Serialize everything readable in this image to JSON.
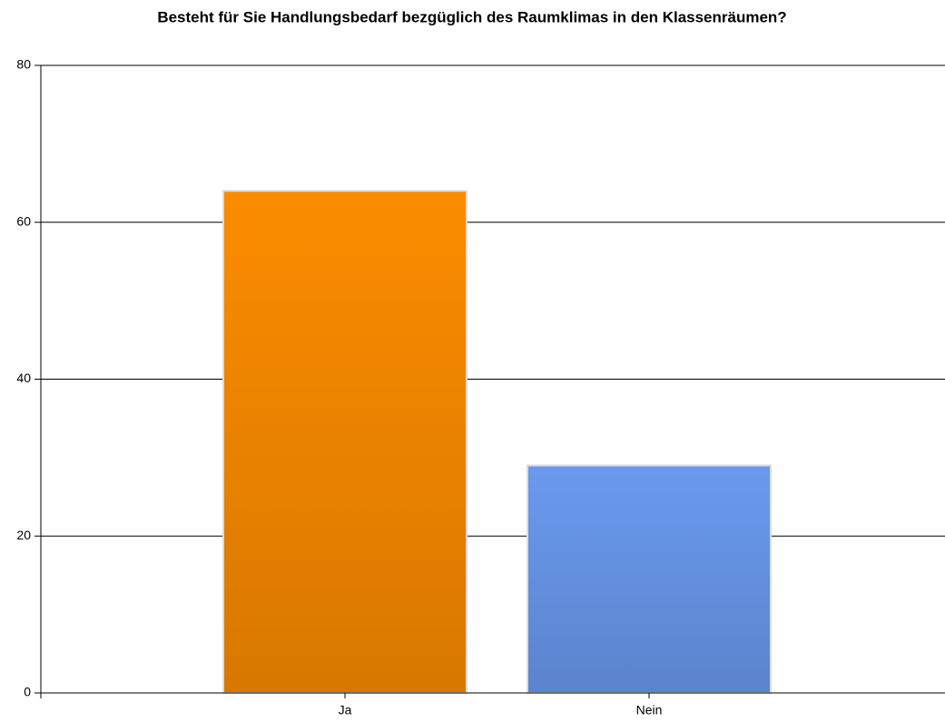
{
  "chart_data": {
    "type": "bar",
    "title": "Besteht für Sie Handlungsbedarf bezgüglich des Raumklimas in den Klassenräumen?",
    "categories": [
      "Ja",
      "Nein"
    ],
    "values": [
      64,
      29
    ],
    "colors": [
      "#fb8c00",
      "#6a9aee"
    ],
    "ylim": [
      0,
      80
    ],
    "yticks": [
      0,
      20,
      40,
      60,
      80
    ],
    "grid": true
  }
}
